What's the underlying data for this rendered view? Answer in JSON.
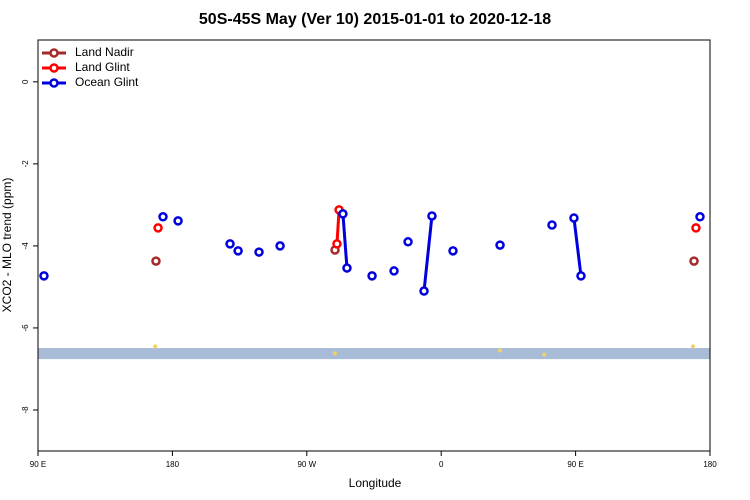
{
  "chart_data": {
    "type": "scatter",
    "title": "50S-45S May (Ver 10)   2015-01-01 to 2020-12-18",
    "xlabel": "Longitude",
    "ylabel": "XCO2 - MLO trend (ppm)",
    "xlim": [
      90,
      540
    ],
    "ylim": [
      -9,
      1.02
    ],
    "xticks": [
      {
        "value": 90,
        "label": "90 E"
      },
      180,
      {
        "value": 270,
        "label": "90 W"
      },
      {
        "value": 360,
        "label": "0"
      },
      {
        "value": 450,
        "label": "90 E"
      },
      {
        "value": 540,
        "label": "180"
      }
    ],
    "yticks": [
      0,
      -2,
      -4,
      -6,
      -8
    ],
    "legend": "top-left",
    "series": [
      {
        "name": "Land Nadir",
        "color": "#a52a2a",
        "x": [
          169.0,
          null,
          288.9,
          null,
          529.3
        ],
        "values": [
          -4.37,
          null,
          -4.1,
          null,
          -4.37
        ]
      },
      {
        "name": "Land Glint",
        "color": "#ff0000",
        "x": [
          170.4,
          null,
          290.2,
          291.6,
          null,
          530.6
        ],
        "values": [
          -3.56,
          null,
          -3.95,
          -3.12,
          null,
          -3.56
        ]
      },
      {
        "name": "Ocean Glint",
        "color": "#0000dd",
        "x": [
          94.0,
          null,
          173.7,
          null,
          183.8,
          null,
          218.6,
          null,
          224.0,
          null,
          238.0,
          null,
          252.1,
          null,
          294.2,
          296.9,
          null,
          313.7,
          null,
          328.4,
          null,
          337.8,
          null,
          348.5,
          353.8,
          null,
          367.9,
          null,
          399.4,
          null,
          434.2,
          null,
          448.9,
          453.6,
          null,
          533.3
        ],
        "values": [
          -4.73,
          null,
          -3.29,
          null,
          -3.39,
          null,
          -3.95,
          null,
          -4.12,
          null,
          -4.15,
          null,
          -4.0,
          null,
          -3.22,
          -4.54,
          null,
          -4.73,
          null,
          -4.61,
          null,
          -3.9,
          null,
          -5.1,
          -3.27,
          null,
          -4.12,
          null,
          -3.98,
          null,
          -3.49,
          null,
          -3.32,
          -4.73,
          null,
          -3.29
        ]
      }
    ],
    "band": {
      "range": [
        -6.76,
        -6.49
      ],
      "color": "#a8bcd8"
    },
    "highlights": {
      "color": "#f5d060",
      "x": [
        168.5,
        288.9,
        399.4,
        429.0,
        528.6
      ],
      "values": [
        -6.45,
        -6.62,
        -6.55,
        -6.65,
        -6.45
      ]
    }
  }
}
